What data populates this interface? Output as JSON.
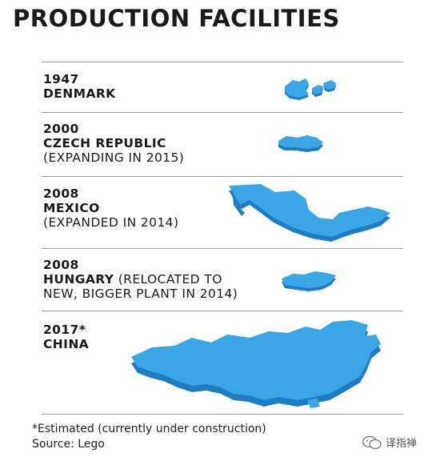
{
  "title": "PRODUCTION FACILITIES",
  "colors": {
    "map_top": "#3aa6e6",
    "map_side": "#1f7cc0",
    "rule": "#9a9a9a"
  },
  "entries": [
    {
      "year": "1947",
      "country": "DENMARK",
      "note": "",
      "map_icon": "denmark-map"
    },
    {
      "year": "2000",
      "country": "CZECH REPUBLIC",
      "note": "(EXPANDING IN 2015)",
      "map_icon": "czech-republic-map"
    },
    {
      "year": "2008",
      "country": "MEXICO",
      "note": "(EXPANDED IN 2014)",
      "map_icon": "mexico-map"
    },
    {
      "year": "2008",
      "country": "HUNGARY",
      "note_inline": "(RELOCATED TO",
      "note": "NEW, BIGGER PLANT IN 2014)",
      "map_icon": "hungary-map"
    },
    {
      "year": "2017*",
      "country": "CHINA",
      "note": "",
      "map_icon": "china-map"
    }
  ],
  "footer": {
    "footnote": "*Estimated (currently under construction)",
    "source": "Source: Lego"
  },
  "watermark": {
    "text": "译指禅",
    "icon": "wechat-icon"
  }
}
